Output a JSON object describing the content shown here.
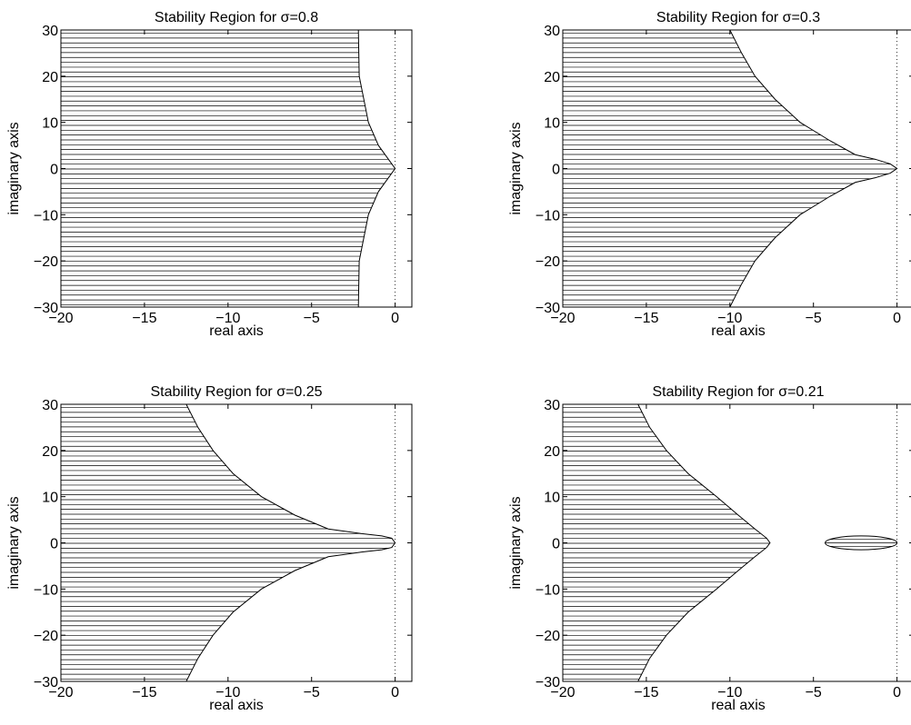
{
  "figure": {
    "background": "#ffffff",
    "line_color": "#000000"
  },
  "chart_data": [
    {
      "type": "area",
      "title": "Stability Region for σ=0.8",
      "xlabel": "real axis",
      "ylabel": "imaginary axis",
      "xlim": [
        -20,
        1
      ],
      "ylim": [
        -30,
        30
      ],
      "xticks": [
        -20,
        -15,
        -10,
        -5,
        0
      ],
      "yticks": [
        -30,
        -20,
        -10,
        0,
        10,
        20,
        30
      ],
      "xtick_labels": [
        "−20",
        "−15",
        "−10",
        "−5",
        "0"
      ],
      "ytick_labels": [
        "−30",
        "−20",
        "−10",
        "0",
        "10",
        "20",
        "30"
      ],
      "grid": false,
      "imaginary_axis_dotted": true,
      "region_fill": "horizontal-hatch",
      "series": [
        {
          "boundary": [
            [
              -2.2,
              30
            ],
            [
              -2.15,
              20
            ],
            [
              -1.6,
              10
            ],
            [
              -1.0,
              5
            ],
            [
              -0.2,
              1
            ],
            [
              0,
              0
            ],
            [
              -0.2,
              -1
            ],
            [
              -1.0,
              -5
            ],
            [
              -1.6,
              -10
            ],
            [
              -2.15,
              -20
            ],
            [
              -2.2,
              -30
            ]
          ]
        }
      ],
      "islands": []
    },
    {
      "type": "area",
      "title": "Stability Region for σ=0.3",
      "xlabel": "real axis",
      "ylabel": "imaginary axis",
      "xlim": [
        -20,
        1
      ],
      "ylim": [
        -30,
        30
      ],
      "xticks": [
        -20,
        -15,
        -10,
        -5,
        0
      ],
      "yticks": [
        -30,
        -20,
        -10,
        0,
        10,
        20,
        30
      ],
      "xtick_labels": [
        "−20",
        "−15",
        "−10",
        "−5",
        "0"
      ],
      "ytick_labels": [
        "−30",
        "−20",
        "−10",
        "0",
        "10",
        "20",
        "30"
      ],
      "grid": false,
      "imaginary_axis_dotted": true,
      "region_fill": "horizontal-hatch",
      "series": [
        {
          "boundary": [
            [
              -10.0,
              30
            ],
            [
              -9.3,
              25
            ],
            [
              -8.5,
              20
            ],
            [
              -7.3,
              15
            ],
            [
              -5.8,
              10
            ],
            [
              -4.0,
              6
            ],
            [
              -2.5,
              3
            ],
            [
              -1.3,
              2
            ],
            [
              -0.4,
              1
            ],
            [
              0,
              0
            ],
            [
              -0.4,
              -1
            ],
            [
              -1.3,
              -2
            ],
            [
              -2.5,
              -3
            ],
            [
              -4.0,
              -6
            ],
            [
              -5.8,
              -10
            ],
            [
              -7.3,
              -15
            ],
            [
              -8.5,
              -20
            ],
            [
              -9.3,
              -25
            ],
            [
              -10.0,
              -30
            ]
          ]
        }
      ],
      "islands": []
    },
    {
      "type": "area",
      "title": "Stability Region for σ=0.25",
      "xlabel": "real axis",
      "ylabel": "imaginary axis",
      "xlim": [
        -20,
        1
      ],
      "ylim": [
        -30,
        30
      ],
      "xticks": [
        -20,
        -15,
        -10,
        -5,
        0
      ],
      "yticks": [
        -30,
        -20,
        -10,
        0,
        10,
        20,
        30
      ],
      "xtick_labels": [
        "−20",
        "−15",
        "−10",
        "−5",
        "0"
      ],
      "ytick_labels": [
        "−30",
        "−20",
        "−10",
        "0",
        "10",
        "20",
        "30"
      ],
      "grid": false,
      "imaginary_axis_dotted": true,
      "region_fill": "horizontal-hatch",
      "series": [
        {
          "boundary": [
            [
              -12.5,
              30
            ],
            [
              -11.8,
              25
            ],
            [
              -10.9,
              20
            ],
            [
              -9.7,
              15
            ],
            [
              -8.0,
              10
            ],
            [
              -6.0,
              6
            ],
            [
              -4.0,
              3
            ],
            [
              -2.0,
              2
            ],
            [
              -0.8,
              1.5
            ],
            [
              -0.2,
              1
            ],
            [
              0,
              0
            ],
            [
              -0.2,
              -1
            ],
            [
              -0.8,
              -1.5
            ],
            [
              -2.0,
              -2
            ],
            [
              -4.0,
              -3
            ],
            [
              -6.0,
              -6
            ],
            [
              -8.0,
              -10
            ],
            [
              -9.7,
              -15
            ],
            [
              -10.9,
              -20
            ],
            [
              -11.8,
              -25
            ],
            [
              -12.5,
              -30
            ]
          ]
        }
      ],
      "islands": []
    },
    {
      "type": "area",
      "title": "Stability Region for σ=0.21",
      "xlabel": "real axis",
      "ylabel": "imaginary axis",
      "xlim": [
        -20,
        1
      ],
      "ylim": [
        -30,
        30
      ],
      "xticks": [
        -20,
        -15,
        -10,
        -5,
        0
      ],
      "yticks": [
        -30,
        -20,
        -10,
        0,
        10,
        20,
        30
      ],
      "xtick_labels": [
        "−20",
        "−15",
        "−10",
        "−5",
        "0"
      ],
      "ytick_labels": [
        "−30",
        "−20",
        "−10",
        "0",
        "10",
        "20",
        "30"
      ],
      "grid": false,
      "imaginary_axis_dotted": true,
      "region_fill": "horizontal-hatch",
      "series": [
        {
          "boundary": [
            [
              -15.5,
              30
            ],
            [
              -14.8,
              25
            ],
            [
              -13.8,
              20
            ],
            [
              -12.5,
              15
            ],
            [
              -10.8,
              10
            ],
            [
              -9.5,
              6
            ],
            [
              -8.5,
              3
            ],
            [
              -7.8,
              1
            ],
            [
              -7.6,
              0
            ],
            [
              -7.8,
              -1
            ],
            [
              -8.5,
              -3
            ],
            [
              -9.5,
              -6
            ],
            [
              -10.8,
              -10
            ],
            [
              -12.5,
              -15
            ],
            [
              -13.8,
              -20
            ],
            [
              -14.8,
              -25
            ],
            [
              -15.5,
              -30
            ]
          ]
        }
      ],
      "islands": [
        {
          "center": [
            -2.15,
            0
          ],
          "half_width": 2.15,
          "half_height": 1.5
        }
      ]
    }
  ]
}
